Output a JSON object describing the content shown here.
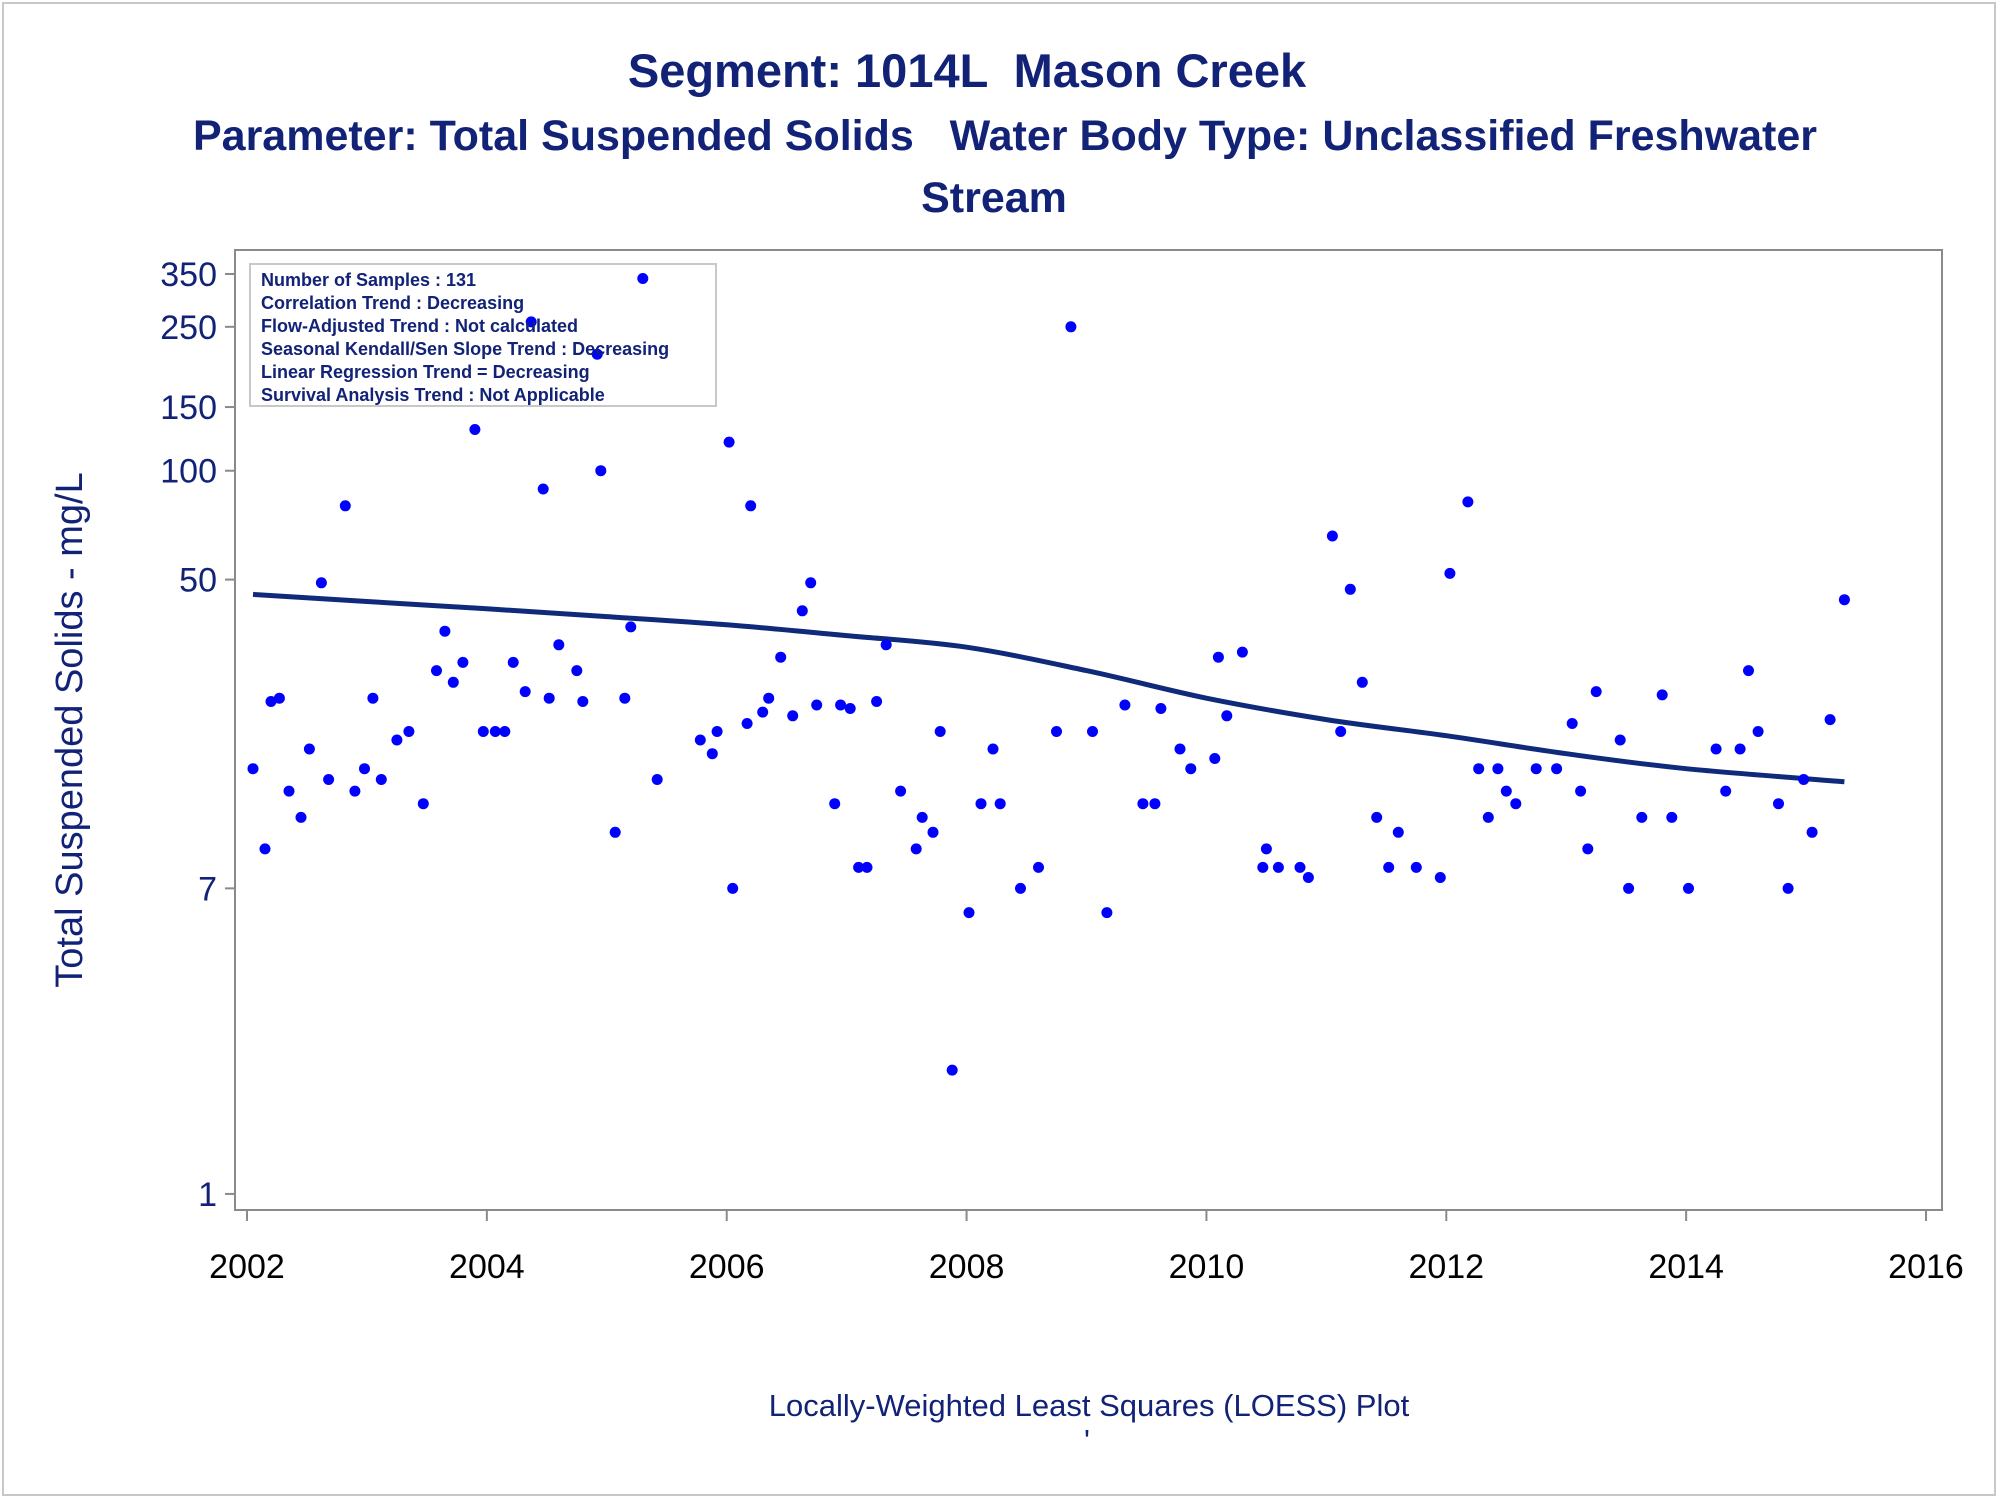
{
  "title": "Segment: 1014L  Mason Creek",
  "subtitle_line1": "Parameter: Total Suspended Solids   Water Body Type: Unclassified Freshwater",
  "subtitle_line2": "Stream",
  "footnote": "Locally-Weighted Least Squares (LOESS) Plot",
  "footnote_mark": "'",
  "colors": {
    "points": "#0000ff",
    "loess": "#0f2a7a",
    "text": "#112277",
    "axis": "#8a8a8a"
  },
  "stats_box": [
    "Number of Samples : 131",
    "Correlation Trend : Decreasing",
    "Flow-Adjusted Trend : Not calculated",
    "Seasonal Kendall/Sen Slope Trend : Decreasing",
    "Linear Regression Trend = Decreasing",
    "Survival Analysis Trend : Not Applicable"
  ],
  "chart_data": {
    "type": "scatter",
    "title": "Segment: 1014L  Mason Creek",
    "xlabel": "",
    "ylabel": "Total Suspended Solids - mg/L",
    "yscale": "log",
    "xlim": [
      2002,
      2016
    ],
    "ylim": [
      0.95,
      390
    ],
    "x_ticks": [
      2002,
      2004,
      2006,
      2008,
      2010,
      2012,
      2014,
      2016
    ],
    "y_ticks": [
      1,
      7,
      50,
      100,
      150,
      250,
      350
    ],
    "points": [
      [
        2002.05,
        15
      ],
      [
        2002.15,
        9
      ],
      [
        2002.2,
        23
      ],
      [
        2002.27,
        23.5
      ],
      [
        2002.35,
        13
      ],
      [
        2002.45,
        11
      ],
      [
        2002.52,
        17
      ],
      [
        2002.62,
        49
      ],
      [
        2002.68,
        14
      ],
      [
        2002.82,
        80
      ],
      [
        2002.9,
        13
      ],
      [
        2002.98,
        15
      ],
      [
        2003.05,
        23.5
      ],
      [
        2003.12,
        14
      ],
      [
        2003.25,
        18
      ],
      [
        2003.35,
        19
      ],
      [
        2003.47,
        12
      ],
      [
        2003.58,
        28
      ],
      [
        2003.65,
        36
      ],
      [
        2003.72,
        26
      ],
      [
        2003.8,
        29.5
      ],
      [
        2003.9,
        130
      ],
      [
        2003.97,
        19
      ],
      [
        2004.07,
        19
      ],
      [
        2004.15,
        19
      ],
      [
        2004.22,
        29.5
      ],
      [
        2004.32,
        24.5
      ],
      [
        2004.37,
        258
      ],
      [
        2004.47,
        89
      ],
      [
        2004.52,
        23.5
      ],
      [
        2004.6,
        33
      ],
      [
        2004.75,
        28
      ],
      [
        2004.8,
        23
      ],
      [
        2004.92,
        210
      ],
      [
        2004.95,
        100
      ],
      [
        2005.07,
        10
      ],
      [
        2005.15,
        23.5
      ],
      [
        2005.2,
        37
      ],
      [
        2005.3,
        340
      ],
      [
        2005.42,
        14
      ],
      [
        2005.78,
        18
      ],
      [
        2005.88,
        16.5
      ],
      [
        2005.92,
        19
      ],
      [
        2006.02,
        120
      ],
      [
        2006.05,
        7
      ],
      [
        2006.17,
        20
      ],
      [
        2006.2,
        80
      ],
      [
        2006.3,
        21.5
      ],
      [
        2006.35,
        23.5
      ],
      [
        2006.45,
        30.5
      ],
      [
        2006.55,
        21
      ],
      [
        2006.63,
        41
      ],
      [
        2006.7,
        49
      ],
      [
        2006.75,
        22.5
      ],
      [
        2006.9,
        12
      ],
      [
        2006.95,
        22.5
      ],
      [
        2007.03,
        22
      ],
      [
        2007.1,
        8
      ],
      [
        2007.17,
        8
      ],
      [
        2007.25,
        23
      ],
      [
        2007.33,
        33
      ],
      [
        2007.45,
        13
      ],
      [
        2007.58,
        9
      ],
      [
        2007.63,
        11
      ],
      [
        2007.72,
        10
      ],
      [
        2007.78,
        19
      ],
      [
        2007.88,
        2.2
      ],
      [
        2008.02,
        6
      ],
      [
        2008.12,
        12
      ],
      [
        2008.22,
        17
      ],
      [
        2008.28,
        12
      ],
      [
        2008.45,
        7
      ],
      [
        2008.6,
        8
      ],
      [
        2008.75,
        19
      ],
      [
        2008.87,
        250
      ],
      [
        2009.05,
        19
      ],
      [
        2009.17,
        6
      ],
      [
        2009.32,
        22.5
      ],
      [
        2009.47,
        12
      ],
      [
        2009.57,
        12
      ],
      [
        2009.62,
        22
      ],
      [
        2009.78,
        17
      ],
      [
        2009.87,
        15
      ],
      [
        2010.07,
        16
      ],
      [
        2010.1,
        30.5
      ],
      [
        2010.17,
        21
      ],
      [
        2010.3,
        31.5
      ],
      [
        2010.47,
        8
      ],
      [
        2010.5,
        9
      ],
      [
        2010.6,
        8
      ],
      [
        2010.78,
        8
      ],
      [
        2010.85,
        7.5
      ],
      [
        2011.05,
        66
      ],
      [
        2011.12,
        19
      ],
      [
        2011.2,
        47
      ],
      [
        2011.3,
        26
      ],
      [
        2011.42,
        11
      ],
      [
        2011.52,
        8
      ],
      [
        2011.6,
        10
      ],
      [
        2011.75,
        8
      ],
      [
        2011.95,
        7.5
      ],
      [
        2012.03,
        52
      ],
      [
        2012.18,
        82
      ],
      [
        2012.27,
        15
      ],
      [
        2012.35,
        11
      ],
      [
        2012.43,
        15
      ],
      [
        2012.5,
        13
      ],
      [
        2012.58,
        12
      ],
      [
        2012.75,
        15
      ],
      [
        2012.92,
        15
      ],
      [
        2013.05,
        20
      ],
      [
        2013.12,
        13
      ],
      [
        2013.18,
        9
      ],
      [
        2013.25,
        24.5
      ],
      [
        2013.45,
        18
      ],
      [
        2013.52,
        7
      ],
      [
        2013.63,
        11
      ],
      [
        2013.8,
        24
      ],
      [
        2013.88,
        11
      ],
      [
        2014.02,
        7
      ],
      [
        2014.25,
        17
      ],
      [
        2014.33,
        13
      ],
      [
        2014.45,
        17
      ],
      [
        2014.52,
        28
      ],
      [
        2014.6,
        19
      ],
      [
        2014.77,
        12
      ],
      [
        2014.85,
        7
      ],
      [
        2014.98,
        14
      ],
      [
        2015.05,
        10
      ],
      [
        2015.2,
        20.5
      ],
      [
        2015.32,
        44
      ]
    ],
    "loess": [
      [
        2002.05,
        45.5
      ],
      [
        2003.0,
        43.5
      ],
      [
        2004.0,
        41.5
      ],
      [
        2005.0,
        39.5
      ],
      [
        2006.0,
        37.5
      ],
      [
        2007.0,
        35
      ],
      [
        2008.0,
        32.5
      ],
      [
        2009.0,
        28
      ],
      [
        2010.0,
        23.5
      ],
      [
        2011.0,
        20.5
      ],
      [
        2012.0,
        18.5
      ],
      [
        2013.0,
        16.5
      ],
      [
        2014.0,
        15
      ],
      [
        2015.32,
        13.8
      ]
    ]
  }
}
